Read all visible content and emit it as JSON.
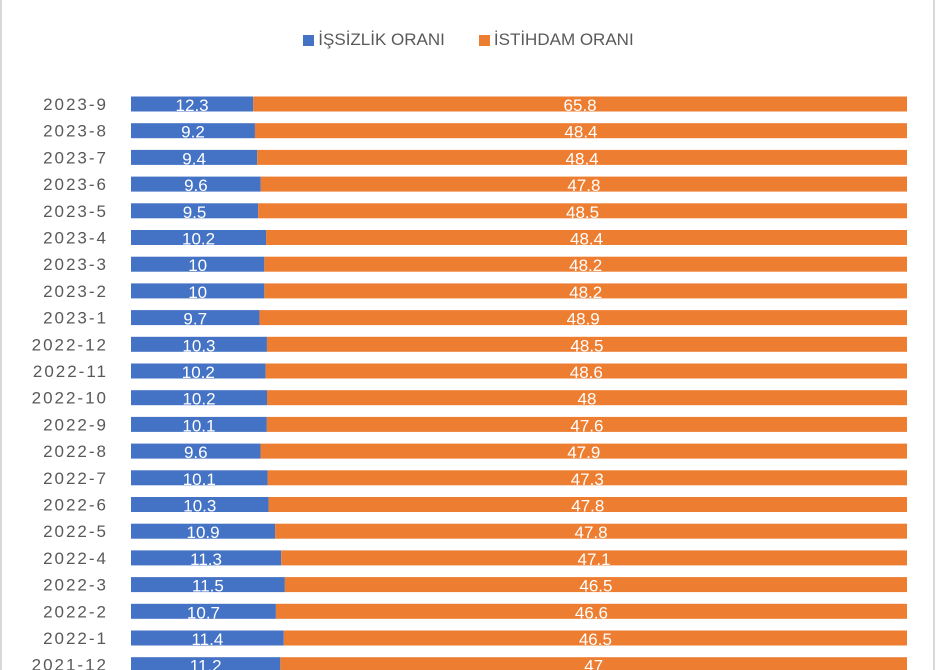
{
  "legend": {
    "items": [
      {
        "label": "İŞSİZLİK ORANI",
        "color": "#4472c4"
      },
      {
        "label": "İSTİHDAM ORANI",
        "color": "#ed7d31"
      }
    ]
  },
  "chart_data": {
    "type": "bar",
    "orientation": "horizontal",
    "stacking": "percent",
    "title": "",
    "legend_position": "top",
    "grid": false,
    "categories": [
      "2023-9",
      "2023-8",
      "2023-7",
      "2023-6",
      "2023-5",
      "2023-4",
      "2023-3",
      "2023-2",
      "2023-1",
      "2022-12",
      "2022-11",
      "2022-10",
      "2022-9",
      "2022-8",
      "2022-7",
      "2022-6",
      "2022-5",
      "2022-4",
      "2022-3",
      "2022-2",
      "2022-1",
      "2021-12"
    ],
    "series": [
      {
        "name": "İŞSİZLİK ORANI",
        "color": "#4472c4",
        "values": [
          12.3,
          9.2,
          9.4,
          9.6,
          9.5,
          10.2,
          10,
          10,
          9.7,
          10.3,
          10.2,
          10.2,
          10.1,
          9.6,
          10.1,
          10.3,
          10.9,
          11.3,
          11.5,
          10.7,
          11.4,
          11.2
        ]
      },
      {
        "name": "İSTİHDAM ORANI",
        "color": "#ed7d31",
        "values": [
          65.8,
          48.4,
          48.4,
          47.8,
          48.5,
          48.4,
          48.2,
          48.2,
          48.9,
          48.5,
          48.6,
          48,
          47.6,
          47.9,
          47.3,
          47.8,
          47.8,
          47.1,
          46.5,
          46.6,
          46.5,
          47
        ]
      }
    ]
  }
}
